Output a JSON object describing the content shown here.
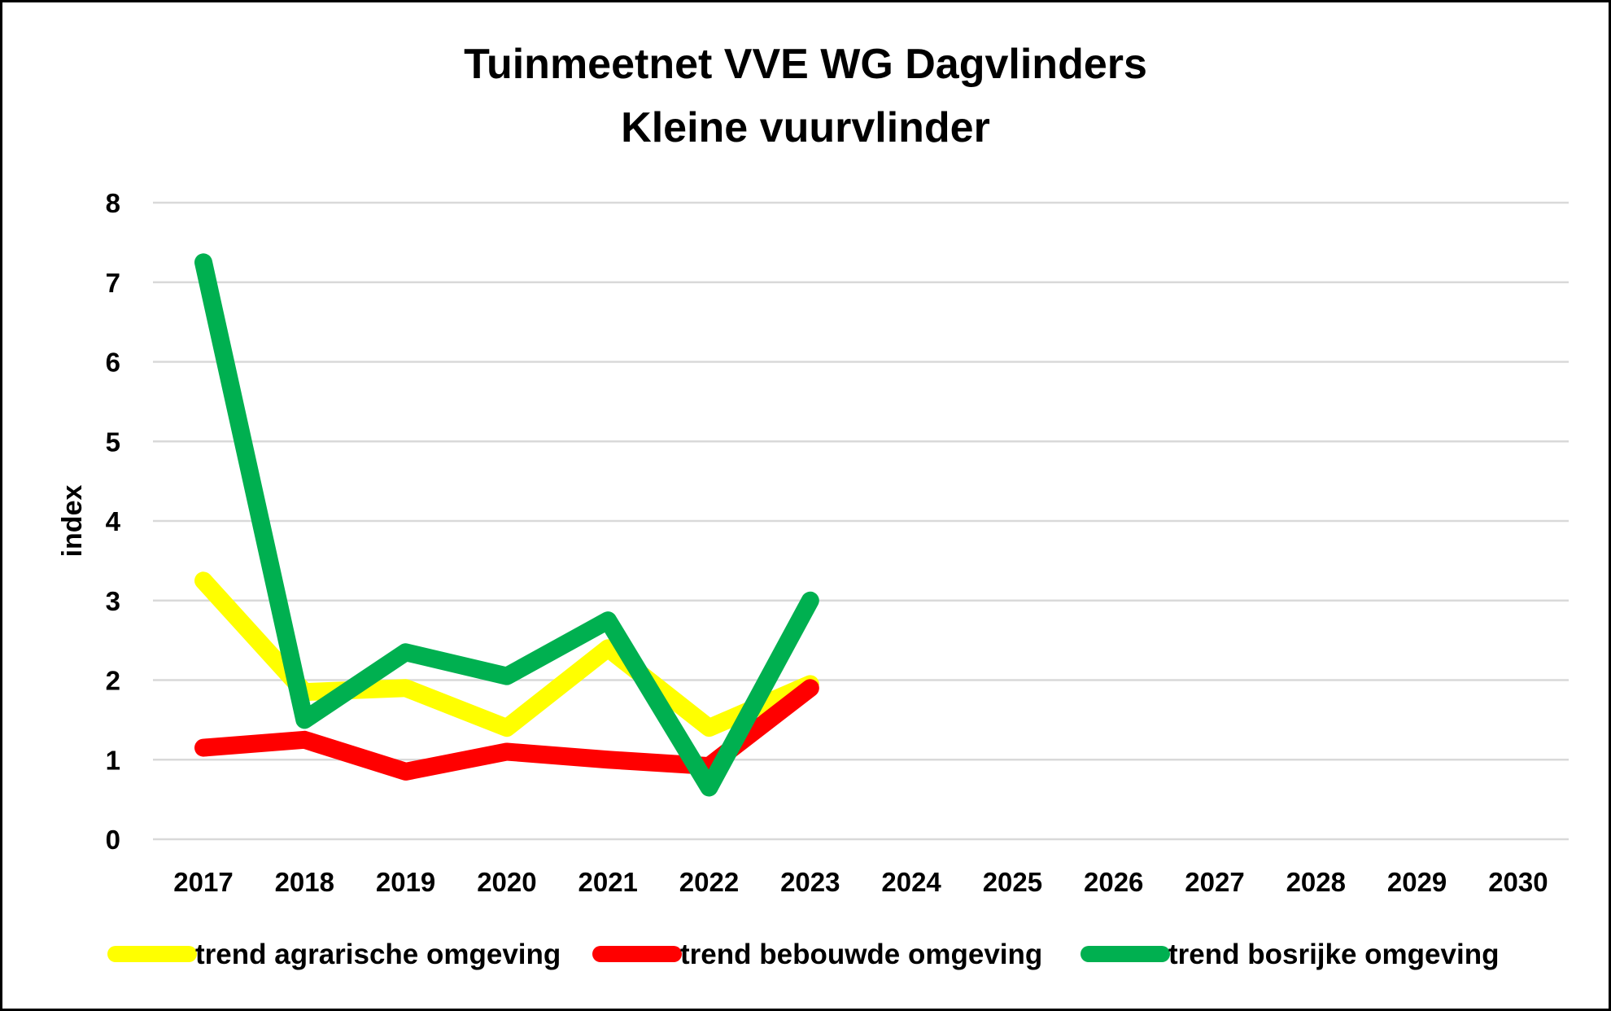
{
  "chart_data": {
    "type": "line",
    "title": "Tuinmeetnet VVE WG Dagvlinders",
    "subtitle": "Kleine vuurvlinder",
    "xlabel": "",
    "ylabel": "index",
    "ylim": [
      0,
      8
    ],
    "yticks": [
      "0",
      "1",
      "2",
      "3",
      "4",
      "5",
      "6",
      "7",
      "8"
    ],
    "grid": true,
    "legend_position": "bottom",
    "categories": [
      "2017",
      "2018",
      "2019",
      "2020",
      "2021",
      "2022",
      "2023",
      "2024",
      "2025",
      "2026",
      "2027",
      "2028",
      "2029",
      "2030"
    ],
    "series": [
      {
        "name": "trend agrarische omgeving",
        "color": "#ffff00",
        "values": [
          3.25,
          1.85,
          1.9,
          1.4,
          2.4,
          1.4,
          1.95,
          null,
          null,
          null,
          null,
          null,
          null,
          null
        ]
      },
      {
        "name": "trend bebouwde omgeving",
        "color": "#ff0000",
        "values": [
          1.15,
          1.25,
          0.85,
          1.1,
          1.0,
          0.92,
          1.9,
          null,
          null,
          null,
          null,
          null,
          null,
          null
        ]
      },
      {
        "name": "trend bosrijke omgeving",
        "color": "#00b050",
        "values": [
          7.25,
          1.5,
          2.35,
          2.05,
          2.75,
          0.65,
          3.0,
          null,
          null,
          null,
          null,
          null,
          null,
          null
        ]
      }
    ]
  }
}
